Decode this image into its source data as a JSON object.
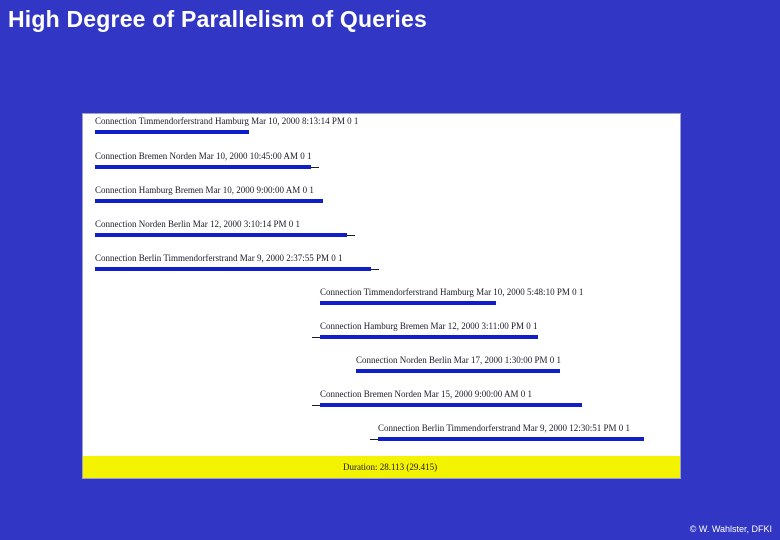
{
  "title": "High Degree of Parallelism of Queries",
  "rows": [
    {
      "label": "Connection Timmendorferstrand  Hamburg  Mar 10, 2000 8:13:14 PM 0 1"
    },
    {
      "label": "Connection Bremen  Norden  Mar 10, 2000 10:45:00 AM 0 1"
    },
    {
      "label": "Connection Hamburg  Bremen  Mar 10, 2000 9:00:00 AM 0 1"
    },
    {
      "label": "Connection Norden  Berlin  Mar 12, 2000 3:10:14 PM 0 1"
    },
    {
      "label": "Connection Berlin  Timmendorferstrand  Mar 9, 2000 2:37:55 PM 0 1"
    },
    {
      "label": "Connection Timmendorferstrand  Hamburg  Mar 10, 2000 5:48:10 PM 0 1"
    },
    {
      "label": "Connection Hamburg  Bremen  Mar 12, 2000 3:11:00 PM 0 1"
    },
    {
      "label": "Connection Norden  Berlin  Mar 17, 2000 1:30:00 PM 0 1"
    },
    {
      "label": "Connection Bremen  Norden  Mar 15, 2000 9:00:00 AM 0 1"
    },
    {
      "label": "Connection Berlin  Timmendorferstrand  Mar 9, 2000 12:30:51 PM 0 1"
    }
  ],
  "duration": "Duration: 28.113 (29.415)",
  "footer": "© W. Wahlster, DFKI",
  "colors": {
    "background": "#3236c4",
    "bar": "#0f1ec8",
    "band": "#f3f300"
  }
}
